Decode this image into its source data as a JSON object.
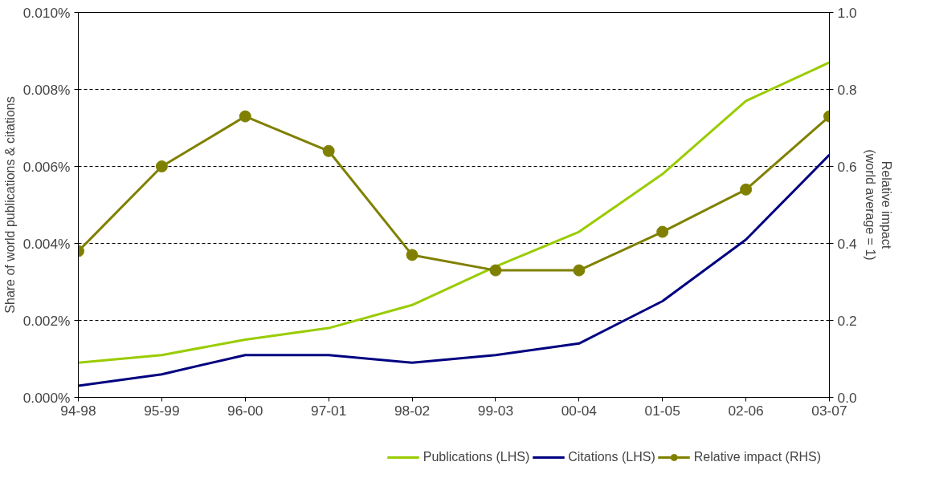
{
  "chart_data": {
    "type": "line",
    "categories": [
      "94-98",
      "95-99",
      "96-00",
      "97-01",
      "98-02",
      "99-03",
      "00-04",
      "01-05",
      "02-06",
      "03-07"
    ],
    "ylabel": "Share of world publications & citations",
    "y2label": "Relative impact\n(world average = 1)",
    "ylim": [
      0,
      0.01
    ],
    "yticks": [
      {
        "value": 0,
        "label": "0.000%"
      },
      {
        "value": 0.002,
        "label": "0.002%"
      },
      {
        "value": 0.004,
        "label": "0.004%"
      },
      {
        "value": 0.006,
        "label": "0.006%"
      },
      {
        "value": 0.008,
        "label": "0.008%"
      },
      {
        "value": 0.01,
        "label": "0.010%"
      }
    ],
    "y2lim": [
      0,
      1
    ],
    "y2ticks": [
      {
        "value": 0,
        "label": "0.0"
      },
      {
        "value": 0.2,
        "label": "0.2"
      },
      {
        "value": 0.4,
        "label": "0.4"
      },
      {
        "value": 0.6,
        "label": "0.6"
      },
      {
        "value": 0.8,
        "label": "0.8"
      },
      {
        "value": 1,
        "label": "1.0"
      }
    ],
    "grid": "y",
    "legend": "bottom",
    "series": [
      {
        "name": "Publications (LHS)",
        "color": "#99cc00",
        "marker": "none",
        "values": [
          0.0009,
          0.0011,
          0.0015,
          0.0018,
          0.0024,
          0.0034,
          0.0043,
          0.0058,
          0.0077,
          0.0087
        ]
      },
      {
        "name": "Citations (LHS)",
        "color": "#000080",
        "marker": "none",
        "values": [
          0.0003,
          0.0006,
          0.0011,
          0.0011,
          0.0009,
          0.0011,
          0.0014,
          0.0025,
          0.0041,
          0.0063
        ]
      },
      {
        "name": "Relative impact (RHS)",
        "color": "#808000",
        "marker": "circle",
        "axis": "y2",
        "values": [
          0.38,
          0.6,
          0.73,
          0.64,
          0.37,
          0.33,
          0.33,
          0.43,
          0.54,
          0.73
        ]
      }
    ]
  }
}
